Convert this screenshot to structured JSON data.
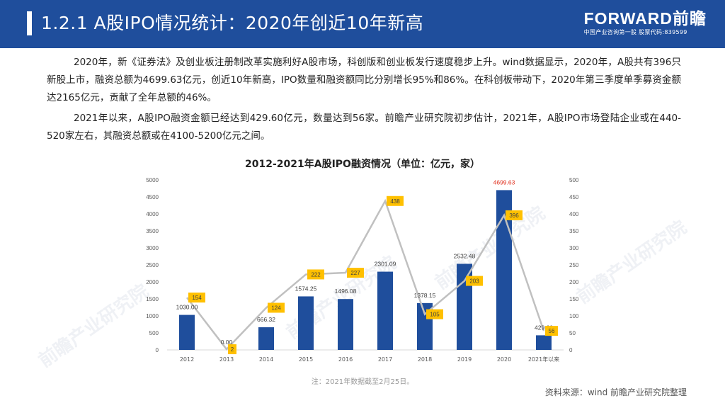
{
  "header": {
    "title": "1.2.1 A股IPO情况统计：2020年创近10年新高",
    "logo_name": "FORWARD前瞻",
    "logo_sub": "中国产业咨询第一股 股票代码:839599"
  },
  "paragraphs": [
    "2020年，新《证券法》及创业板注册制改革实施利好A股市场，科创版和创业板发行速度稳步上升。wind数据显示，2020年，A股共有396只新股上市，融资总额为4699.63亿元，创近10年新高，IPO数量和融资额同比分别增长95%和86%。在科创板带动下，2020年第三季度单季募资金额达2165亿元，贡献了全年总额的46%。",
    "2021年以来，A股IPO融资金额已经达到429.60亿元，数量达到56家。前瞻产业研究院初步估计，2021年，A股IPO市场登陆企业或在440-520家左右，其融资总额或在4100-5200亿元之间。"
  ],
  "watermark": "前瞻产业研究院",
  "chart_data": {
    "type": "bar",
    "title": "2012-2021年A股IPO融资情况（单位：亿元，家）",
    "categories": [
      "2012",
      "2013",
      "2014",
      "2015",
      "2016",
      "2017",
      "2018",
      "2019",
      "2020",
      "2021年以来"
    ],
    "series": [
      {
        "type": "bar",
        "axis": "left",
        "values": [
          1030.0,
          0.0,
          666.32,
          1574.25,
          1496.08,
          2301.09,
          1378.15,
          2532.48,
          4699.63,
          429.6
        ],
        "labels": [
          "1030.00",
          "0.00",
          "666.32",
          "1574.25",
          "1496.08",
          "2301.09",
          "1378.15",
          "2532.48",
          "4699.63",
          "429.60"
        ],
        "color": "#1f4e9c"
      },
      {
        "type": "line",
        "axis": "right",
        "values": [
          154,
          2,
          124,
          222,
          227,
          438,
          105,
          203,
          396,
          56
        ],
        "color": "#c0c0c0",
        "label_bg": "#ffc000"
      }
    ],
    "ylim_left": [
      0,
      5000
    ],
    "yticks_left": [
      0,
      500,
      1000,
      1500,
      2000,
      2500,
      3000,
      3500,
      4000,
      4500,
      5000
    ],
    "ylim_right": [
      0,
      500
    ],
    "yticks_right": [
      0,
      50,
      100,
      150,
      200,
      250,
      300,
      350,
      400,
      450,
      500
    ],
    "highlight_label_color": "#e0301e",
    "grid": false
  },
  "note": "注：2021年数据截至2月25日。",
  "source": "资料来源：wind 前瞻产业研究院整理"
}
